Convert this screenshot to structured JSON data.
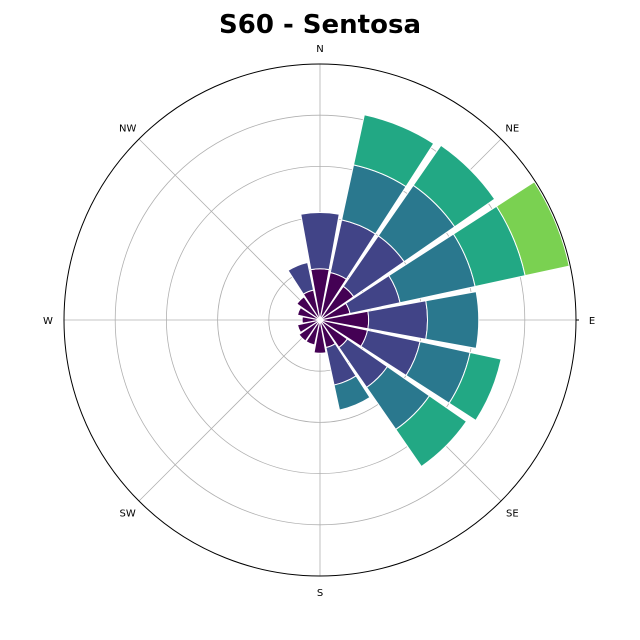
{
  "chart_data": {
    "type": "windrose",
    "title": "S60 - Sentosa",
    "direction_labels": [
      "N",
      "NE",
      "E",
      "SE",
      "S",
      "SW",
      "W",
      "NW"
    ],
    "directions_deg": [
      0,
      22.5,
      45,
      67.5,
      90,
      112.5,
      135,
      157.5,
      180,
      202.5,
      225,
      247.5,
      270,
      292.5,
      315,
      337.5
    ],
    "radial_rings": [
      1,
      2,
      3,
      4,
      5
    ],
    "rmax": 5,
    "grid": true,
    "colors": [
      "#440154",
      "#414487",
      "#2a788e",
      "#22a884",
      "#7ad151"
    ],
    "segments": [
      [
        1.0,
        1.1,
        0.0,
        0.0,
        0.0
      ],
      [
        0.95,
        1.05,
        1.1,
        1.0,
        0.0
      ],
      [
        0.8,
        1.2,
        1.2,
        0.95,
        0.0
      ],
      [
        0.6,
        1.0,
        1.5,
        1.0,
        0.88
      ],
      [
        0.95,
        1.15,
        1.0,
        0.0,
        0.0
      ],
      [
        0.95,
        1.05,
        1.0,
        0.62,
        0.0
      ],
      [
        0.65,
        0.95,
        1.0,
        0.88,
        0.0
      ],
      [
        0.55,
        0.75,
        0.5,
        0.0,
        0.0
      ],
      [
        0.65,
        0.0,
        0.0,
        0.0,
        0.0
      ],
      [
        0.5,
        0.0,
        0.0,
        0.0,
        0.0
      ],
      [
        0.5,
        0.0,
        0.0,
        0.0,
        0.0
      ],
      [
        0.45,
        0.0,
        0.0,
        0.0,
        0.0
      ],
      [
        0.35,
        0.0,
        0.0,
        0.0,
        0.0
      ],
      [
        0.45,
        0.0,
        0.0,
        0.0,
        0.0
      ],
      [
        0.55,
        0.0,
        0.0,
        0.0,
        0.0
      ],
      [
        0.6,
        0.55,
        0.0,
        0.0,
        0.0
      ]
    ]
  }
}
